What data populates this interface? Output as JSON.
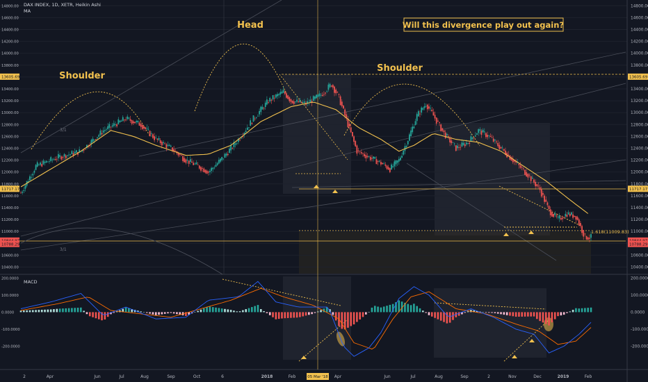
{
  "header": {
    "symbol_line": "DAX INDEX, 1D, XETR, Heikin Ashi",
    "indicator": "MA"
  },
  "annotations": {
    "left_shoulder": "Shoulder",
    "head": "Head",
    "right_shoulder": "Shoulder",
    "question": "Will this divergence play out again?",
    "fib_label": "1.618(11009.83)",
    "ratio_1": "3/1",
    "ratio_2": "3/1",
    "macd_title": "MACD"
  },
  "price_axis": {
    "ticks": [
      "14800.00",
      "14600.00",
      "14400.00",
      "14200.00",
      "14000.00",
      "13800.00",
      "13600.00",
      "13400.00",
      "13200.00",
      "13000.00",
      "12800.00",
      "12600.00",
      "12400.00",
      "12200.00",
      "12000.00",
      "11800.00",
      "11600.00",
      "11400.00",
      "11200.00",
      "11000.00",
      "10800.00",
      "10600.00",
      "10400.00"
    ],
    "range": [
      10300,
      14850
    ],
    "level_tags": [
      {
        "text": "13605.69",
        "value": 13605.69,
        "color": "#f2c14e"
      },
      {
        "text": "11717.17",
        "value": 11717.17,
        "color": "#f2c14e"
      },
      {
        "text": "10844.97",
        "value": 10844.97,
        "color": "#ef5350"
      },
      {
        "text": "10788.29",
        "value": 10788.29,
        "color": "#ef5350"
      }
    ]
  },
  "macd_axis": {
    "ticks": [
      "200.0000",
      "100.0000",
      "0.0000",
      "-100.0000",
      "-200.0000"
    ],
    "range": [
      -280,
      210
    ]
  },
  "time_axis": {
    "labels": [
      "2",
      "Apr",
      "Jun",
      "Jul",
      "Aug",
      "Sep",
      "Oct",
      "6",
      "2018",
      "Feb",
      "05 Mar '18",
      "Apr",
      "Jun",
      "Jul",
      "Aug",
      "Sep",
      "2",
      "Nov",
      "Dec",
      "2019",
      "Feb"
    ],
    "cursor_label": "05 Mar '18"
  },
  "colors": {
    "background": "#131722",
    "up": "#26a69a",
    "down": "#ef5350",
    "ma": "#f2c14e",
    "annotation": "#f2c14e",
    "macd_line": "#2962ff",
    "signal_line": "#ff6d00"
  },
  "chart_data": {
    "type": "candlestick",
    "title": "DAX INDEX, 1D, XETR, Heikin Ashi",
    "ylim": [
      10300,
      14850
    ],
    "trend_path": [
      [
        0,
        11650
      ],
      [
        10,
        12100
      ],
      [
        25,
        12250
      ],
      [
        40,
        12350
      ],
      [
        55,
        12700
      ],
      [
        70,
        12900
      ],
      [
        80,
        12800
      ],
      [
        90,
        12550
      ],
      [
        100,
        12400
      ],
      [
        110,
        12200
      ],
      [
        118,
        12100
      ],
      [
        125,
        12000
      ],
      [
        135,
        12250
      ],
      [
        145,
        12550
      ],
      [
        155,
        12900
      ],
      [
        165,
        13200
      ],
      [
        175,
        13350
      ],
      [
        180,
        13200
      ],
      [
        190,
        13150
      ],
      [
        200,
        13300
      ],
      [
        207,
        13480
      ],
      [
        212,
        13250
      ],
      [
        218,
        12800
      ],
      [
        224,
        12350
      ],
      [
        232,
        12250
      ],
      [
        240,
        12150
      ],
      [
        246,
        12050
      ],
      [
        252,
        12200
      ],
      [
        258,
        12550
      ],
      [
        264,
        12950
      ],
      [
        270,
        13150
      ],
      [
        275,
        12950
      ],
      [
        282,
        12650
      ],
      [
        290,
        12400
      ],
      [
        298,
        12500
      ],
      [
        305,
        12700
      ],
      [
        312,
        12600
      ],
      [
        320,
        12400
      ],
      [
        330,
        12150
      ],
      [
        338,
        11950
      ],
      [
        346,
        11700
      ],
      [
        352,
        11350
      ],
      [
        358,
        11200
      ],
      [
        364,
        11300
      ],
      [
        370,
        11250
      ],
      [
        376,
        10900
      ]
    ],
    "ma_path": [
      [
        0,
        11750
      ],
      [
        20,
        12050
      ],
      [
        40,
        12350
      ],
      [
        60,
        12700
      ],
      [
        75,
        12600
      ],
      [
        90,
        12450
      ],
      [
        110,
        12280
      ],
      [
        125,
        12300
      ],
      [
        140,
        12450
      ],
      [
        160,
        12850
      ],
      [
        180,
        13100
      ],
      [
        195,
        13180
      ],
      [
        210,
        13050
      ],
      [
        225,
        12750
      ],
      [
        240,
        12550
      ],
      [
        252,
        12350
      ],
      [
        262,
        12450
      ],
      [
        275,
        12650
      ],
      [
        290,
        12550
      ],
      [
        305,
        12500
      ],
      [
        320,
        12350
      ],
      [
        335,
        12100
      ],
      [
        350,
        11850
      ],
      [
        365,
        11550
      ],
      [
        378,
        11300
      ]
    ],
    "macd_series": {
      "macd": [
        [
          0,
          20
        ],
        [
          20,
          60
        ],
        [
          40,
          110
        ],
        [
          55,
          -20
        ],
        [
          70,
          30
        ],
        [
          90,
          -40
        ],
        [
          110,
          -30
        ],
        [
          125,
          70
        ],
        [
          145,
          90
        ],
        [
          158,
          180
        ],
        [
          170,
          60
        ],
        [
          185,
          30
        ],
        [
          205,
          30
        ],
        [
          215,
          -200
        ],
        [
          222,
          -260
        ],
        [
          232,
          -210
        ],
        [
          240,
          -120
        ],
        [
          252,
          80
        ],
        [
          262,
          150
        ],
        [
          272,
          100
        ],
        [
          285,
          -30
        ],
        [
          300,
          20
        ],
        [
          315,
          -30
        ],
        [
          330,
          -100
        ],
        [
          342,
          -130
        ],
        [
          352,
          -240
        ],
        [
          362,
          -200
        ],
        [
          372,
          -130
        ],
        [
          380,
          -60
        ]
      ],
      "signal": [
        [
          0,
          10
        ],
        [
          25,
          50
        ],
        [
          45,
          90
        ],
        [
          60,
          10
        ],
        [
          80,
          -10
        ],
        [
          100,
          -30
        ],
        [
          120,
          20
        ],
        [
          140,
          70
        ],
        [
          160,
          140
        ],
        [
          175,
          90
        ],
        [
          195,
          40
        ],
        [
          212,
          -40
        ],
        [
          222,
          -180
        ],
        [
          235,
          -220
        ],
        [
          248,
          -40
        ],
        [
          260,
          90
        ],
        [
          272,
          120
        ],
        [
          290,
          20
        ],
        [
          310,
          -10
        ],
        [
          330,
          -70
        ],
        [
          345,
          -110
        ],
        [
          358,
          -190
        ],
        [
          370,
          -170
        ],
        [
          380,
          -90
        ]
      ]
    }
  }
}
